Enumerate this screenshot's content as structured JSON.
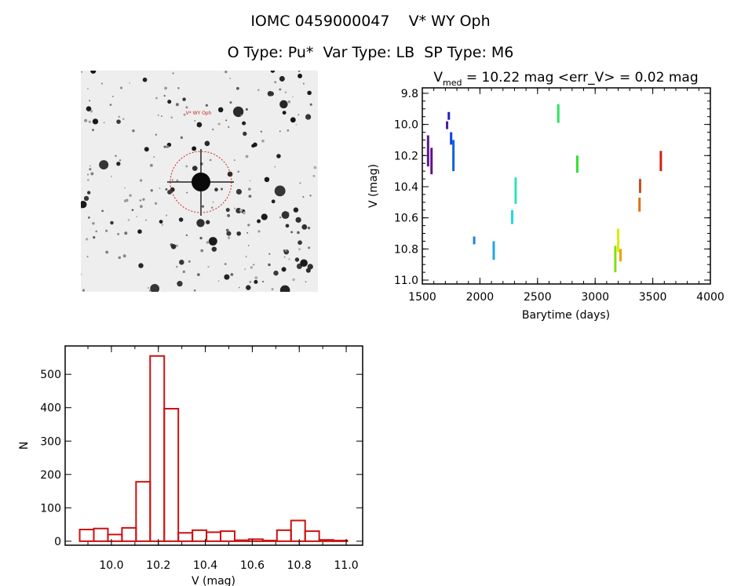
{
  "header": {
    "line1": "IOMC 0459000047    V* WY Oph",
    "line2": "O Type: Pu*  Var Type: LB  SP Type: M6"
  },
  "finder_image": {
    "label": "V* WY Oph",
    "marker_color": "#cc2222"
  },
  "chart_data": [
    {
      "type": "scatter",
      "title_prefix": "V",
      "title_sub": "med",
      "title_rest": " = 10.22 mag <err_V> = 0.02 mag",
      "xlabel": "Barytime (days)",
      "ylabel": "V (mag)",
      "xlim": [
        1500,
        4000
      ],
      "ylim": [
        11.025,
        9.765
      ],
      "y_inverted": true,
      "xticks": [
        "1500",
        "2000",
        "2500",
        "3000",
        "3500",
        "4000"
      ],
      "yticks": [
        "9.8",
        "10.0",
        "10.2",
        "10.4",
        "10.6",
        "10.8",
        "11.0"
      ],
      "clusters": [
        {
          "x": 1550,
          "v_min": 10.07,
          "v_max": 10.27,
          "color": "#5a1a8a"
        },
        {
          "x": 1580,
          "v_min": 10.15,
          "v_max": 10.32,
          "color": "#62108c"
        },
        {
          "x": 1715,
          "v_min": 9.98,
          "v_max": 10.03,
          "color": "#4a1ca0"
        },
        {
          "x": 1730,
          "v_min": 9.92,
          "v_max": 9.97,
          "color": "#2020c0"
        },
        {
          "x": 1750,
          "v_min": 10.05,
          "v_max": 10.13,
          "color": "#1040e0"
        },
        {
          "x": 1770,
          "v_min": 10.1,
          "v_max": 10.3,
          "color": "#1060e0"
        },
        {
          "x": 1950,
          "v_min": 10.72,
          "v_max": 10.77,
          "color": "#2080e0"
        },
        {
          "x": 2120,
          "v_min": 10.75,
          "v_max": 10.87,
          "color": "#20a8e0"
        },
        {
          "x": 2280,
          "v_min": 10.55,
          "v_max": 10.64,
          "color": "#20d8e8"
        },
        {
          "x": 2310,
          "v_min": 10.34,
          "v_max": 10.51,
          "color": "#30e0c0"
        },
        {
          "x": 2680,
          "v_min": 9.87,
          "v_max": 9.99,
          "color": "#30e060"
        },
        {
          "x": 2845,
          "v_min": 10.2,
          "v_max": 10.31,
          "color": "#30e030"
        },
        {
          "x": 3175,
          "v_min": 10.78,
          "v_max": 10.95,
          "color": "#80e010"
        },
        {
          "x": 3200,
          "v_min": 10.67,
          "v_max": 10.82,
          "color": "#d8f000"
        },
        {
          "x": 3220,
          "v_min": 10.8,
          "v_max": 10.88,
          "color": "#f0a000"
        },
        {
          "x": 3390,
          "v_min": 10.35,
          "v_max": 10.44,
          "color": "#c05020"
        },
        {
          "x": 3385,
          "v_min": 10.47,
          "v_max": 10.56,
          "color": "#e07010"
        },
        {
          "x": 3570,
          "v_min": 10.17,
          "v_max": 10.3,
          "color": "#d02010"
        }
      ]
    },
    {
      "type": "bar",
      "xlabel": "V (mag)",
      "ylabel": "N",
      "xlim": [
        9.803,
        11.07
      ],
      "ylim": [
        -12,
        585
      ],
      "xticks": [
        "10.0",
        "10.2",
        "10.4",
        "10.6",
        "10.8",
        "11.0"
      ],
      "yticks": [
        "0",
        "100",
        "200",
        "300",
        "400",
        "500"
      ],
      "bar_color": "#cc1111",
      "bin_width": 0.06,
      "bin_starts": [
        9.865,
        9.925,
        9.985,
        10.045,
        10.105,
        10.165,
        10.225,
        10.285,
        10.345,
        10.405,
        10.465,
        10.525,
        10.585,
        10.645,
        10.705,
        10.765,
        10.825,
        10.885,
        10.945
      ],
      "values": [
        35,
        38,
        20,
        40,
        178,
        555,
        397,
        25,
        33,
        27,
        30,
        3,
        6,
        2,
        33,
        62,
        30,
        4,
        2
      ]
    }
  ]
}
